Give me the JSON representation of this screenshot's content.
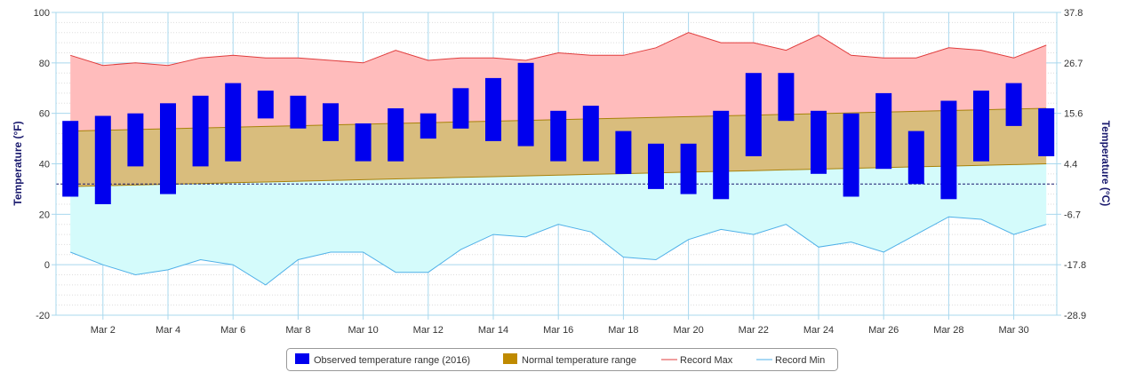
{
  "chart_data": {
    "type": "bar",
    "x_tick_labels": [
      "Mar 2",
      "Mar 4",
      "Mar 6",
      "Mar 8",
      "Mar 10",
      "Mar 12",
      "Mar 14",
      "Mar 16",
      "Mar 18",
      "Mar 20",
      "Mar 22",
      "Mar 24",
      "Mar 26",
      "Mar 28",
      "Mar 30"
    ],
    "x_tick_days": [
      2,
      4,
      6,
      8,
      10,
      12,
      14,
      16,
      18,
      20,
      22,
      24,
      26,
      28,
      30
    ],
    "days": [
      1,
      2,
      3,
      4,
      5,
      6,
      7,
      8,
      9,
      10,
      11,
      12,
      13,
      14,
      15,
      16,
      17,
      18,
      19,
      20,
      21,
      22,
      23,
      24,
      25,
      26,
      27,
      28,
      29,
      30,
      31
    ],
    "ylabel_left": "Temperature (°F)",
    "ylabel_right": "Temperature (°C)",
    "ylim": [
      -20,
      100
    ],
    "y_ticks_left": [
      "-20",
      "0",
      "20",
      "40",
      "60",
      "80",
      "100"
    ],
    "y_ticks_right": [
      "-28.9",
      "-17.8",
      "-6.7",
      "4.4",
      "15.6",
      "26.7",
      "37.8"
    ],
    "freezing_line": 32,
    "grid": true,
    "legend_position": "bottom-center",
    "series": [
      {
        "name": "Observed temperature range (2016)",
        "color": "#0000ee",
        "low": [
          27,
          24,
          39,
          28,
          39,
          41,
          58,
          54,
          49,
          41,
          41,
          50,
          54,
          49,
          47,
          41,
          41,
          36,
          30,
          28,
          26,
          43,
          57,
          36,
          27,
          38,
          32,
          26,
          41,
          55,
          43
        ],
        "high": [
          57,
          59,
          60,
          64,
          67,
          72,
          69,
          67,
          64,
          56,
          62,
          60,
          70,
          74,
          80,
          61,
          63,
          53,
          48,
          48,
          61,
          76,
          76,
          61,
          60,
          68,
          53,
          65,
          69,
          72,
          62
        ]
      },
      {
        "name": "Normal temperature range",
        "color": "#bf8a00",
        "low": [
          31,
          31.3,
          31.6,
          31.9,
          32.2,
          32.5,
          32.8,
          33.1,
          33.4,
          33.7,
          34,
          34.3,
          34.6,
          34.9,
          35.2,
          35.5,
          35.8,
          36.1,
          36.4,
          36.7,
          37,
          37.3,
          37.6,
          37.9,
          38.2,
          38.5,
          38.8,
          39.1,
          39.4,
          39.7,
          40
        ],
        "high": [
          53,
          53.3,
          53.6,
          53.9,
          54.2,
          54.5,
          54.8,
          55.1,
          55.4,
          55.7,
          56,
          56.3,
          56.6,
          56.9,
          57.2,
          57.5,
          57.8,
          58.1,
          58.4,
          58.7,
          59,
          59.3,
          59.6,
          59.9,
          60.2,
          60.5,
          60.8,
          61.1,
          61.4,
          61.7,
          62
        ]
      },
      {
        "name": "Record Max",
        "color": "#e03c3c",
        "values": [
          83,
          79,
          80,
          79,
          82,
          83,
          82,
          82,
          81,
          80,
          85,
          81,
          82,
          82,
          81,
          84,
          83,
          83,
          86,
          92,
          88,
          88,
          85,
          91,
          83,
          82,
          82,
          86,
          85,
          82,
          87
        ]
      },
      {
        "name": "Record Min",
        "color": "#4fb0e8",
        "values": [
          5,
          0,
          -4,
          -2,
          2,
          0,
          -8,
          2,
          5,
          5,
          -3,
          -3,
          6,
          12,
          11,
          16,
          13,
          3,
          2,
          10,
          14,
          12,
          16,
          7,
          9,
          5,
          12,
          19,
          18,
          12,
          16
        ]
      }
    ]
  }
}
